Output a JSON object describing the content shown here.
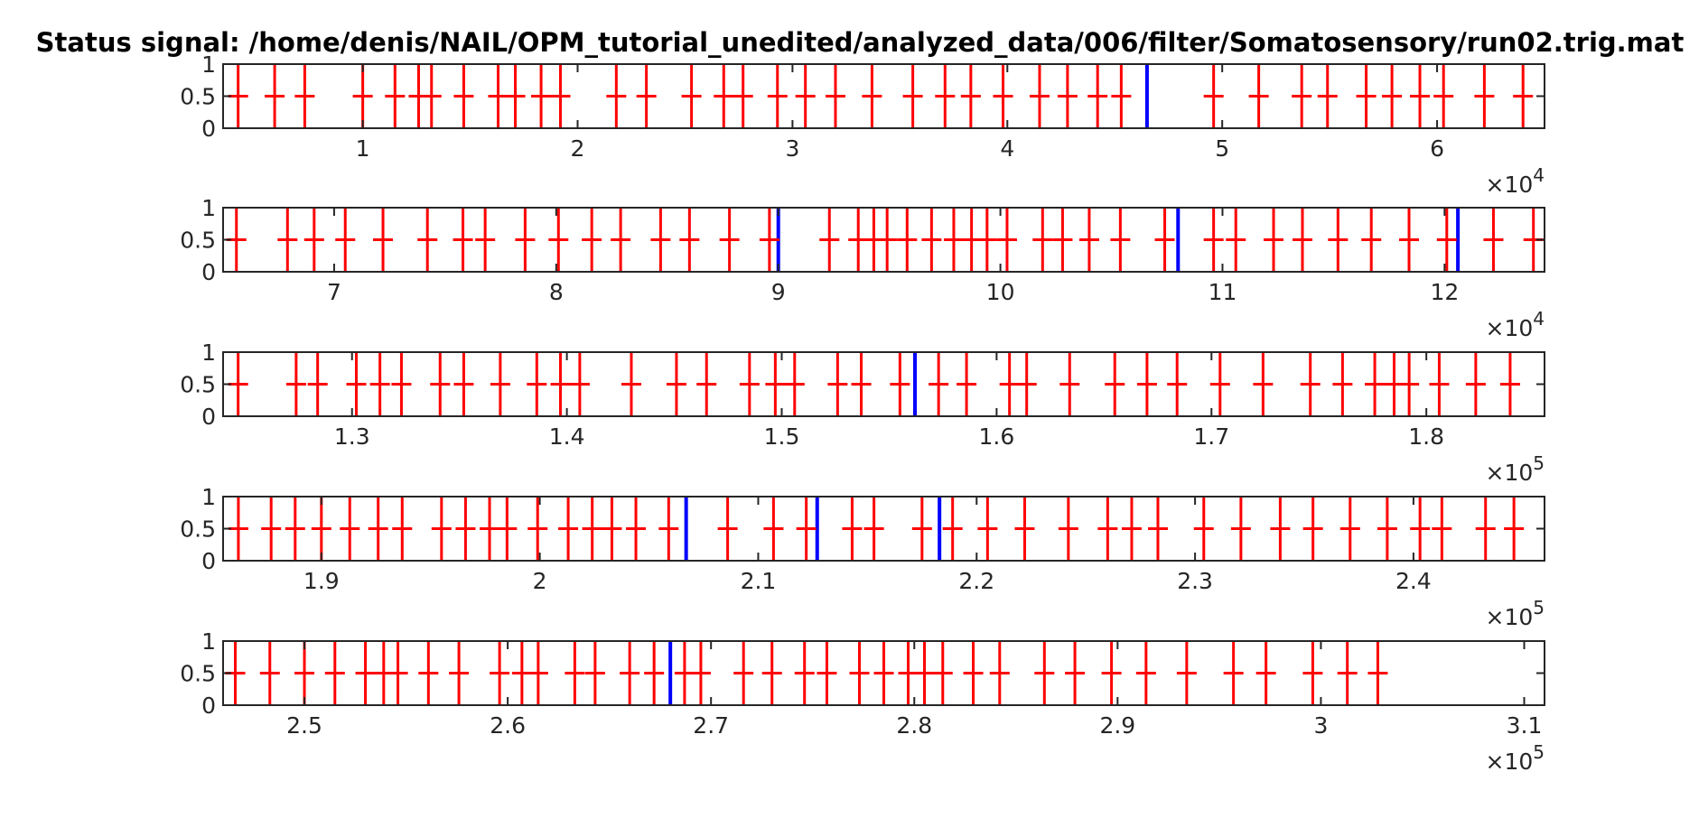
{
  "chart_data": {
    "type": "line",
    "title": "Status signal: /home/denis/NAIL/OPM_tutorial_unedited/analyzed_data/006/filter/Somatosensory/run02.trig.mat",
    "colors": {
      "signal": "#0000ff",
      "markers": "#ff0000",
      "axes": "#262626"
    },
    "ylim": [
      0,
      1
    ],
    "yticks": [
      "0",
      "0.5",
      "1"
    ],
    "marker_level": 0.5,
    "panels": [
      {
        "xlim": [
          3500,
          65000
        ],
        "xtick_values": [
          10000,
          20000,
          30000,
          40000,
          50000,
          60000
        ],
        "xtick_labels": [
          "1",
          "2",
          "3",
          "4",
          "5",
          "6"
        ],
        "exponent_base": "×10",
        "exponent": "4",
        "events": [
          4200,
          5900,
          7300,
          10000,
          11500,
          12600,
          13200,
          14700,
          16300,
          17100,
          18300,
          19200,
          21800,
          23200,
          25300,
          26800,
          27700,
          29300,
          30600,
          32000,
          33700,
          35600,
          37100,
          38300,
          39800,
          41500,
          42800,
          44200,
          45300,
          49600,
          51700,
          53700,
          54900,
          56700,
          57900,
          59200,
          60300,
          62200,
          64000
        ],
        "marked_events": [
          4200,
          5900,
          7300,
          10000,
          11500,
          12600,
          13200,
          14700,
          16300,
          17100,
          18300,
          19200,
          21800,
          23200,
          25300,
          26800,
          27700,
          29300,
          30600,
          32000,
          33700,
          35600,
          37100,
          38300,
          39800,
          41500,
          42800,
          44200,
          45300,
          49600,
          51700,
          53700,
          54900,
          56700,
          57900,
          59200,
          60300,
          62200,
          64000
        ],
        "unmarked_events": [
          46500
        ]
      },
      {
        "xlim": [
          65000,
          124500
        ],
        "xtick_values": [
          70000,
          80000,
          90000,
          100000,
          110000,
          120000
        ],
        "xtick_labels": [
          "7",
          "8",
          "9",
          "10",
          "11",
          "12"
        ],
        "exponent_base": "×10",
        "exponent": "4",
        "events": [
          65600,
          67900,
          69100,
          70500,
          72200,
          74200,
          75800,
          76800,
          78600,
          80100,
          81600,
          82900,
          84700,
          86000,
          87800,
          89600,
          92300,
          93600,
          94300,
          94900,
          95800,
          96900,
          97900,
          98700,
          99400,
          100300,
          101900,
          102800,
          104000,
          105400,
          107400,
          109600,
          110600,
          112300,
          113600,
          115200,
          116700,
          118400,
          120100,
          122200,
          124000
        ],
        "marked_events": [
          65600,
          67900,
          69100,
          70500,
          72200,
          74200,
          75800,
          76800,
          78600,
          80100,
          81600,
          82900,
          84700,
          86000,
          87800,
          89600,
          92300,
          93600,
          94300,
          94900,
          95800,
          96900,
          97900,
          98700,
          99400,
          100300,
          101900,
          102800,
          104000,
          105400,
          107400,
          109600,
          110600,
          112300,
          113600,
          115200,
          116700,
          118400,
          120100,
          122200,
          124000
        ],
        "unmarked_events": [
          90000,
          108000,
          120600
        ]
      },
      {
        "xlim": [
          124000,
          185500
        ],
        "xtick_values": [
          130000,
          140000,
          150000,
          160000,
          170000,
          180000
        ],
        "xtick_labels": [
          "1.3",
          "1.4",
          "1.5",
          "1.6",
          "1.7",
          "1.8"
        ],
        "exponent_base": "×10",
        "exponent": "5",
        "events": [
          124700,
          127400,
          128400,
          130200,
          131300,
          132300,
          134100,
          135200,
          136900,
          138600,
          139700,
          140600,
          143000,
          145100,
          146500,
          148500,
          149700,
          150600,
          152600,
          153700,
          155500,
          157300,
          158600,
          160600,
          161400,
          163400,
          165500,
          167000,
          168400,
          170400,
          172400,
          174600,
          176100,
          177600,
          178500,
          179200,
          180600,
          182300,
          183900
        ],
        "marked_events": [
          124700,
          127400,
          128400,
          130200,
          131300,
          132300,
          134100,
          135200,
          136900,
          138600,
          139700,
          140600,
          143000,
          145100,
          146500,
          148500,
          149700,
          150600,
          152600,
          153700,
          155500,
          157300,
          158600,
          160600,
          161400,
          163400,
          165500,
          167000,
          168400,
          170400,
          172400,
          174600,
          176100,
          177600,
          178500,
          179200,
          180600,
          182300,
          183900
        ],
        "unmarked_events": [
          156200
        ]
      },
      {
        "xlim": [
          185500,
          246000
        ],
        "xtick_values": [
          190000,
          200000,
          210000,
          220000,
          230000,
          240000
        ],
        "xtick_labels": [
          "1.9",
          "2",
          "2.1",
          "2.2",
          "2.3",
          "2.4"
        ],
        "exponent_base": "×10",
        "exponent": "5",
        "events": [
          186200,
          187700,
          188800,
          190000,
          191300,
          192600,
          193700,
          195500,
          196600,
          197700,
          198500,
          199900,
          201300,
          202400,
          203300,
          204400,
          205900,
          208600,
          210700,
          212200,
          214300,
          215300,
          217500,
          218900,
          220500,
          222200,
          224200,
          226000,
          227100,
          228300,
          230400,
          232100,
          233900,
          235400,
          237100,
          238800,
          240300,
          241300,
          243300,
          244600
        ],
        "marked_events": [
          186200,
          187700,
          188800,
          190000,
          191300,
          192600,
          193700,
          195500,
          196600,
          197700,
          198500,
          199900,
          201300,
          202400,
          203300,
          204400,
          205900,
          208600,
          210700,
          212200,
          214300,
          215300,
          217500,
          218900,
          220500,
          222200,
          224200,
          226000,
          227100,
          228300,
          230400,
          232100,
          233900,
          235400,
          237100,
          238800,
          240300,
          241300,
          243300,
          244600
        ],
        "unmarked_events": [
          206700,
          212700,
          218300
        ]
      },
      {
        "xlim": [
          246000,
          311000
        ],
        "xtick_values": [
          250000,
          260000,
          270000,
          280000,
          290000,
          300000,
          310000
        ],
        "xtick_labels": [
          "2.5",
          "2.6",
          "2.7",
          "2.8",
          "2.9",
          "3",
          "3.1"
        ],
        "exponent_base": "×10",
        "exponent": "5",
        "events": [
          246600,
          248300,
          250000,
          251500,
          253000,
          253900,
          254600,
          256100,
          257600,
          259600,
          260700,
          261500,
          263300,
          264300,
          266000,
          267200,
          268700,
          269500,
          271600,
          273000,
          274600,
          275700,
          277300,
          278500,
          279700,
          280500,
          281400,
          282900,
          284200,
          286400,
          287900,
          289700,
          291400,
          293400,
          295700,
          297300,
          299600,
          301300,
          302800
        ],
        "marked_events": [
          246600,
          248300,
          250000,
          251500,
          253000,
          253900,
          254600,
          256100,
          257600,
          259600,
          260700,
          261500,
          263300,
          264300,
          266000,
          267200,
          268700,
          269500,
          271600,
          273000,
          274600,
          275700,
          277300,
          278500,
          279700,
          280500,
          281400,
          282900,
          284200,
          286400,
          287900,
          289700,
          291400,
          293400,
          295700,
          297300,
          299600,
          301300,
          302800
        ],
        "unmarked_events": [
          268000
        ]
      }
    ]
  }
}
